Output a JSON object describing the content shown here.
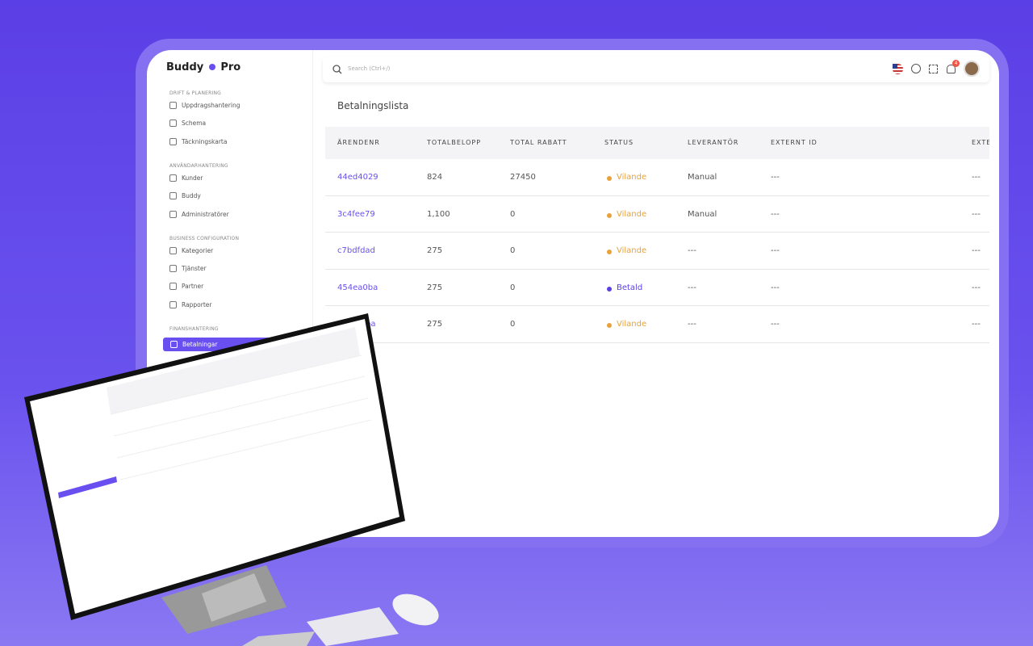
{
  "logo": {
    "name": "Buddy",
    "suffix": "Pro"
  },
  "search": {
    "placeholder": "Search (Ctrl+/)"
  },
  "notifications": {
    "count": "4"
  },
  "sidebar": [
    {
      "title": "DRIFT & PLANERING",
      "items": [
        "Uppdragshantering",
        "Schema",
        "Täckningskarta"
      ]
    },
    {
      "title": "ANVÄNDARHANTERING",
      "items": [
        "Kunder",
        "Buddy",
        "Administratörer"
      ]
    },
    {
      "title": "BUSINESS CONFIGURATION",
      "items": [
        "Kategorier",
        "Tjänster",
        "Partner",
        "Rapporter"
      ]
    },
    {
      "title": "FINANSHANTERING",
      "items": [
        "Betalningar"
      ]
    }
  ],
  "page": {
    "title": "Betalningslista"
  },
  "table": {
    "headers": [
      "ÄRENDENR",
      "TOTALBELOPP",
      "TOTAL RABATT",
      "STATUS",
      "LEVERANTÖR",
      "EXTERNT ID",
      "EXTE"
    ],
    "rows": [
      [
        "44ed4029",
        "824",
        "27450",
        "Vilande",
        "Manual",
        "---",
        "---"
      ],
      [
        "3c4fee79",
        "1,100",
        "0",
        "Vilande",
        "Manual",
        "---",
        "---"
      ],
      [
        "c7bdfdad",
        "275",
        "0",
        "Vilande",
        "---",
        "---",
        "---"
      ],
      [
        "454ea0ba",
        "275",
        "0",
        "Betald",
        "---",
        "---",
        "---"
      ],
      [
        "ba",
        "275",
        "0",
        "Vilande",
        "---",
        "---",
        "---"
      ]
    ]
  }
}
